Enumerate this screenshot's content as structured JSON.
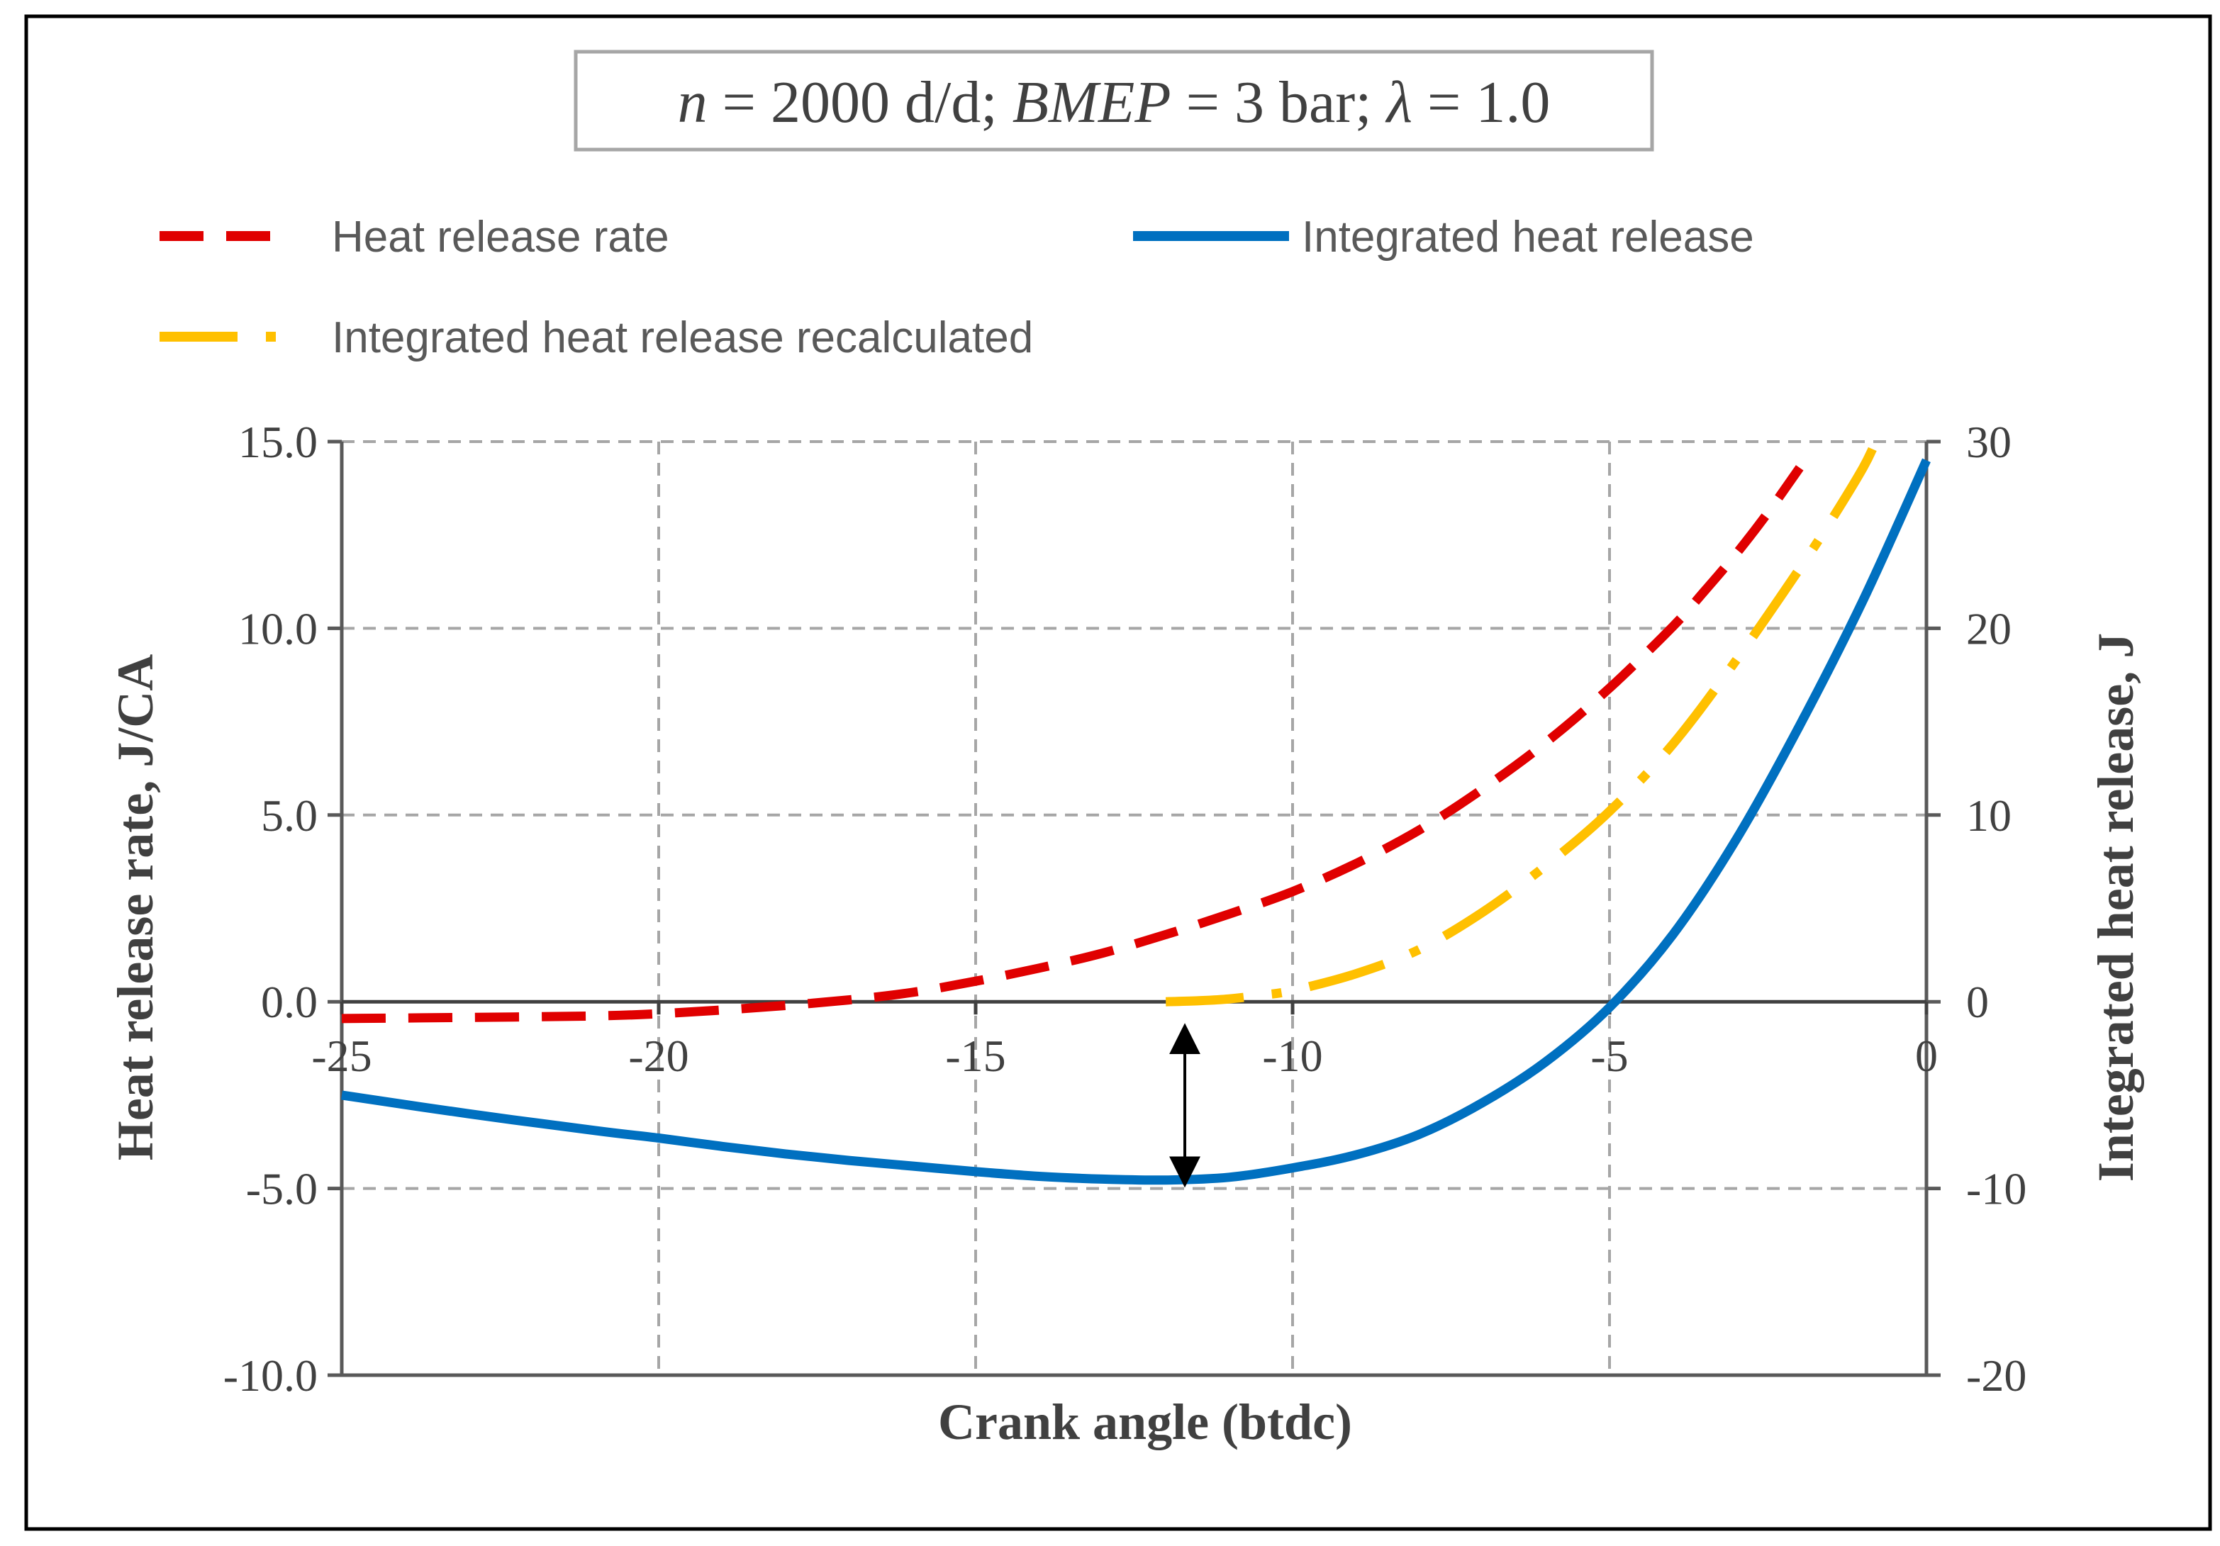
{
  "chart_data": {
    "type": "line",
    "title": {
      "parts": [
        {
          "text": "n",
          "italic": true
        },
        {
          "text": " = 2000 d/d; ",
          "italic": false
        },
        {
          "text": "BMEP",
          "italic": true
        },
        {
          "text": " = 3 bar; ",
          "italic": false
        },
        {
          "text": "λ",
          "italic": true
        },
        {
          "text": " = 1.0",
          "italic": false
        }
      ]
    },
    "xlabel": "Crank angle (btdc)",
    "ylabel_left": "Heat release rate, J/CA",
    "ylabel_right": "Integrated heat release, J",
    "xlim": [
      -25,
      0
    ],
    "ylim_left": [
      -10,
      15
    ],
    "ylim_right": [
      -20,
      30
    ],
    "x_ticks": [
      "-25",
      "-20",
      "-15",
      "-10",
      "-5",
      "0"
    ],
    "y_left_ticks": [
      "-10.0",
      "-5.0",
      "0.0",
      "5.0",
      "10.0",
      "15.0"
    ],
    "y_right_ticks": [
      "-20",
      "-10",
      "0",
      "10",
      "20",
      "30"
    ],
    "grid": true,
    "legend_position": "top",
    "series": [
      {
        "name": "Heat release rate",
        "axis": "left",
        "style": "dashed",
        "color": "#E00000",
        "x": [
          -25,
          -23,
          -21,
          -20,
          -19,
          -18,
          -17,
          -16,
          -15,
          -14,
          -13,
          -12,
          -11,
          -10,
          -9,
          -8,
          -7,
          -6,
          -5,
          -4,
          -3.5,
          -3,
          -2.5,
          -2
        ],
        "y": [
          -0.45,
          -0.42,
          -0.38,
          -0.32,
          -0.22,
          -0.1,
          0.05,
          0.25,
          0.55,
          0.9,
          1.3,
          1.8,
          2.35,
          2.95,
          3.7,
          4.6,
          5.7,
          6.95,
          8.4,
          10.05,
          11.0,
          12.0,
          13.1,
          14.3
        ]
      },
      {
        "name": "Integrated heat release",
        "axis": "right",
        "style": "solid",
        "color": "#0070C0",
        "x": [
          -25,
          -23,
          -21,
          -20,
          -19,
          -18,
          -17,
          -16,
          -15,
          -14,
          -13,
          -12,
          -11,
          -10,
          -9,
          -8,
          -7,
          -6,
          -5,
          -4,
          -3,
          -2,
          -1,
          0
        ],
        "y": [
          -5.0,
          -6.0,
          -6.9,
          -7.3,
          -7.75,
          -8.15,
          -8.5,
          -8.8,
          -9.1,
          -9.35,
          -9.5,
          -9.55,
          -9.4,
          -8.9,
          -8.2,
          -7.1,
          -5.4,
          -3.2,
          -0.3,
          3.6,
          8.7,
          14.8,
          21.5,
          29.0
        ]
      },
      {
        "name": "Integrated heat release recalculated",
        "axis": "right",
        "style": "dash-dot",
        "color": "#FFC000",
        "x": [
          -12,
          -11.5,
          -11,
          -10.5,
          -10,
          -9,
          -8,
          -7,
          -6,
          -5,
          -4,
          -3,
          -2,
          -1.5,
          -1,
          -0.8
        ],
        "y": [
          0,
          0.05,
          0.15,
          0.35,
          0.6,
          1.5,
          2.8,
          4.8,
          7.3,
          10.2,
          13.8,
          18.3,
          23.2,
          25.8,
          28.6,
          30.0
        ]
      }
    ],
    "annotations": [
      {
        "type": "double-arrow",
        "x": -11.7,
        "y_from_right": 0,
        "y_to_right": -9.5
      }
    ]
  }
}
